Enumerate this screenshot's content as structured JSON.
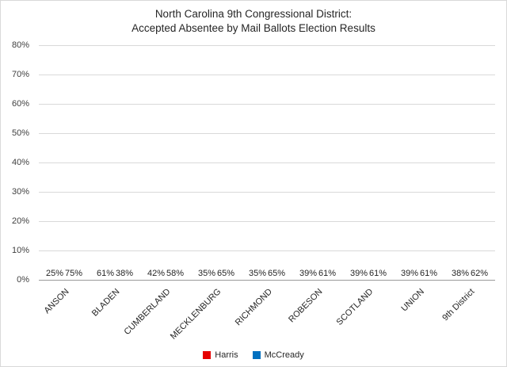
{
  "chart": {
    "title_line1": "North Carolina 9th Congressional District:",
    "title_line2": "Accepted Absentee by Mail Ballots Election Results"
  },
  "chart_data": {
    "type": "bar",
    "title": "North Carolina 9th Congressional District: Accepted Absentee by Mail Ballots Election Results",
    "categories": [
      "ANSON",
      "BLADEN",
      "CUMBERLAND",
      "MECKLENBURG",
      "RICHMOND",
      "ROBESON",
      "SCOTLAND",
      "UNION",
      "9th District"
    ],
    "series": [
      {
        "name": "Harris",
        "color": "#e60000",
        "values": [
          25,
          61,
          42,
          35,
          35,
          39,
          39,
          39,
          38
        ]
      },
      {
        "name": "McCready",
        "color": "#0070c0",
        "values": [
          75,
          38,
          58,
          65,
          65,
          61,
          61,
          61,
          62
        ]
      }
    ],
    "data_labels": [
      [
        "25%",
        "61%",
        "42%",
        "35%",
        "35%",
        "39%",
        "39%",
        "39%",
        "38%"
      ],
      [
        "75%",
        "38%",
        "58%",
        "65%",
        "65%",
        "61%",
        "61%",
        "61%",
        "62%"
      ]
    ],
    "ylim": [
      0,
      80
    ],
    "ytick_step": 10,
    "ytick_labels": [
      "0%",
      "10%",
      "20%",
      "30%",
      "40%",
      "50%",
      "60%",
      "70%",
      "80%"
    ],
    "grid": true,
    "legend_position": "bottom",
    "colors": {
      "harris_red": "#e60000",
      "mccready_blue": "#0070c0",
      "gridline": "#d9d9d9",
      "axis": "#9a9a9a"
    }
  }
}
